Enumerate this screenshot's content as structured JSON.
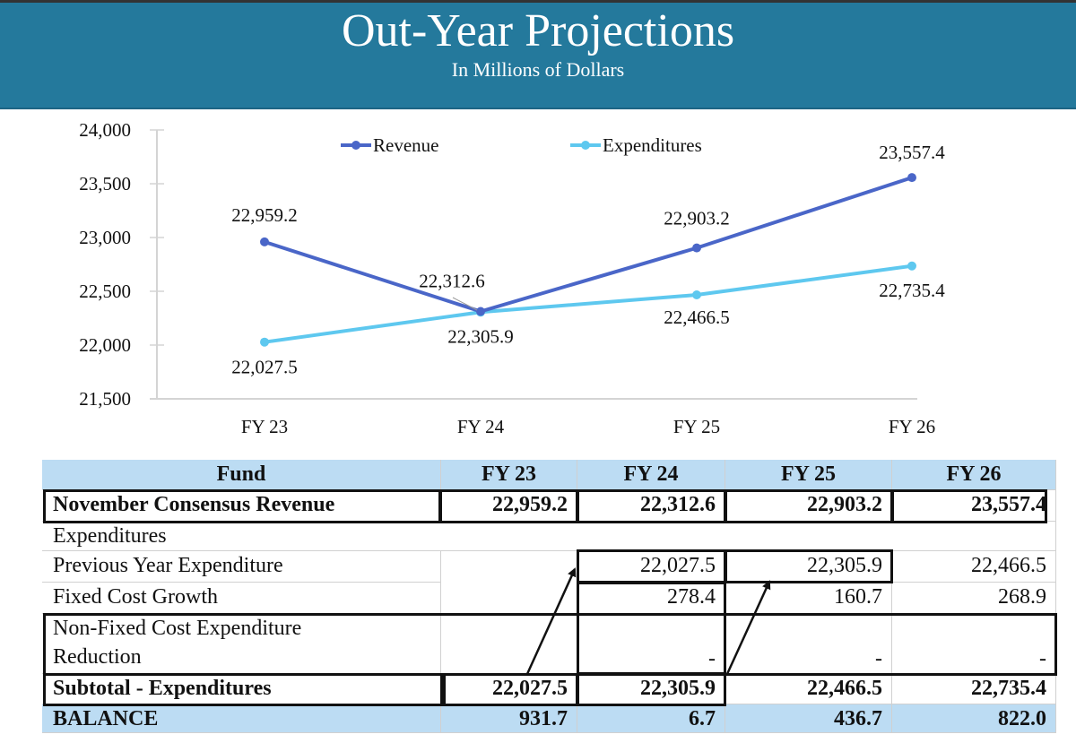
{
  "header": {
    "title": "Out-Year Projections",
    "subtitle": "In Millions of Dollars"
  },
  "colors": {
    "header_bg": "#24799c",
    "revenue": "#4a66c8",
    "expenditures": "#5ec8ef",
    "table_header_bg": "#bcdcf3"
  },
  "chart_data": {
    "type": "line",
    "title": "",
    "xlabel": "",
    "ylabel": "",
    "categories": [
      "FY 23",
      "FY 24",
      "FY 25",
      "FY 26"
    ],
    "ylim": [
      21500,
      24000
    ],
    "yticks": [
      21500,
      22000,
      22500,
      23000,
      23500,
      24000
    ],
    "ytick_labels": [
      "21,500",
      "22,000",
      "22,500",
      "23,000",
      "23,500",
      "24,000"
    ],
    "grid": false,
    "legend_position": "top-center",
    "series": [
      {
        "name": "Revenue",
        "values": [
          22959.2,
          22312.6,
          22903.2,
          23557.4
        ],
        "labels": [
          "22,959.2",
          "22,312.6",
          "22,903.2",
          "23,557.4"
        ]
      },
      {
        "name": "Expenditures",
        "values": [
          22027.5,
          22305.9,
          22466.5,
          22735.4
        ],
        "labels": [
          "22,027.5",
          "22,305.9",
          "22,466.5",
          "22,735.4"
        ]
      }
    ]
  },
  "table": {
    "columns": [
      "Fund",
      "FY 23",
      "FY 24",
      "FY 25",
      "FY 26"
    ],
    "rows": [
      {
        "label": "November Consensus Revenue",
        "values": [
          "22,959.2",
          "22,312.6",
          "22,903.2",
          "23,557.4"
        ]
      },
      {
        "label": "Expenditures",
        "values": [
          "",
          "",
          "",
          ""
        ]
      },
      {
        "label": "Previous Year Expenditure",
        "values": [
          "",
          "22,027.5",
          "22,305.9",
          "22,466.5"
        ]
      },
      {
        "label": "Fixed Cost Growth",
        "values": [
          "",
          "278.4",
          "160.7",
          "268.9"
        ]
      },
      {
        "label": "Non-Fixed Cost Expenditure Reduction",
        "label_line1": "Non-Fixed Cost Expenditure",
        "label_line2": "Reduction",
        "values": [
          "",
          "-",
          "-",
          "-"
        ]
      },
      {
        "label": "Subtotal - Expenditures",
        "values": [
          "22,027.5",
          "22,305.9",
          "22,466.5",
          "22,735.4"
        ]
      },
      {
        "label": "BALANCE",
        "values": [
          "931.7",
          "6.7",
          "436.7",
          "822.0"
        ]
      }
    ]
  }
}
